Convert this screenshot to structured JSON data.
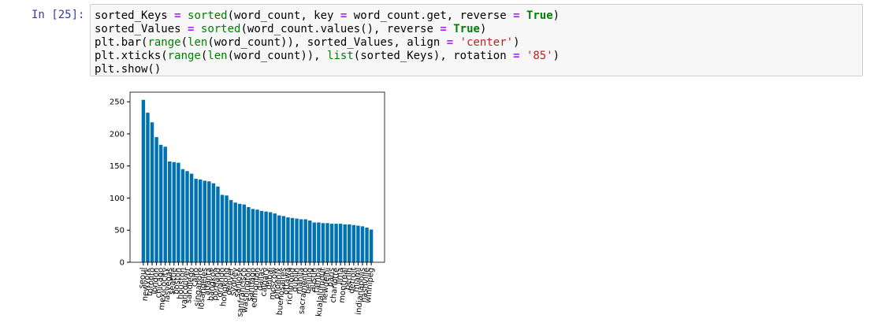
{
  "cell": {
    "prompt": "In [25]:",
    "code": [
      [
        {
          "text": "sorted_Keys ",
          "color": "#000000"
        },
        {
          "text": "=",
          "color": "#aa22ff",
          "bold": true
        },
        {
          "text": " ",
          "color": "#000000"
        },
        {
          "text": "sorted",
          "color": "#008000"
        },
        {
          "text": "(word_count, key ",
          "color": "#000000"
        },
        {
          "text": "=",
          "color": "#aa22ff",
          "bold": true
        },
        {
          "text": " word_count.get, reverse ",
          "color": "#000000"
        },
        {
          "text": "=",
          "color": "#aa22ff",
          "bold": true
        },
        {
          "text": " ",
          "color": "#000000"
        },
        {
          "text": "True",
          "color": "#008000",
          "bold": true
        },
        {
          "text": ")",
          "color": "#000000"
        }
      ],
      [
        {
          "text": "sorted_Values ",
          "color": "#000000"
        },
        {
          "text": "=",
          "color": "#aa22ff",
          "bold": true
        },
        {
          "text": " ",
          "color": "#000000"
        },
        {
          "text": "sorted",
          "color": "#008000"
        },
        {
          "text": "(word_count.values(), reverse ",
          "color": "#000000"
        },
        {
          "text": "=",
          "color": "#aa22ff",
          "bold": true
        },
        {
          "text": " ",
          "color": "#000000"
        },
        {
          "text": "True",
          "color": "#008000",
          "bold": true
        },
        {
          "text": ")",
          "color": "#000000"
        }
      ],
      [
        {
          "text": "plt.bar(",
          "color": "#000000"
        },
        {
          "text": "range",
          "color": "#008000"
        },
        {
          "text": "(",
          "color": "#000000"
        },
        {
          "text": "len",
          "color": "#008000"
        },
        {
          "text": "(word_count)), sorted_Values, align ",
          "color": "#000000"
        },
        {
          "text": "=",
          "color": "#aa22ff",
          "bold": true
        },
        {
          "text": " ",
          "color": "#000000"
        },
        {
          "text": "'center'",
          "color": "#ba2121"
        },
        {
          "text": ")",
          "color": "#000000"
        }
      ],
      [
        {
          "text": "plt.xticks(",
          "color": "#000000"
        },
        {
          "text": "range",
          "color": "#008000"
        },
        {
          "text": "(",
          "color": "#000000"
        },
        {
          "text": "len",
          "color": "#008000"
        },
        {
          "text": "(word_count)), ",
          "color": "#000000"
        },
        {
          "text": "list",
          "color": "#008000"
        },
        {
          "text": "(sorted_Keys), rotation ",
          "color": "#000000"
        },
        {
          "text": "=",
          "color": "#aa22ff",
          "bold": true
        },
        {
          "text": " ",
          "color": "#000000"
        },
        {
          "text": "'85'",
          "color": "#ba2121"
        },
        {
          "text": ")",
          "color": "#000000"
        }
      ],
      [
        {
          "text": "plt.show()",
          "color": "#000000"
        }
      ]
    ]
  },
  "chart_data": {
    "type": "bar",
    "color": "#0072b2",
    "label_rotation": 85,
    "categories": [
      "seoul",
      "newyork",
      "toronto",
      "london",
      "chicago",
      "mexicocity",
      "lasvegas",
      "seattle",
      "boston",
      "houston",
      "vancouver",
      "sandiego",
      "cairo",
      "singapore",
      "losangeles",
      "atlanta",
      "bangkok",
      "portland",
      "orlando",
      "hongkong",
      "denver",
      "sydney",
      "sanjose",
      "sanfrancisco",
      "washington",
      "santiago",
      "edmonton",
      "dallas",
      "calgary",
      "dubai",
      "moscow",
      "phoenix",
      "buenosaires",
      "ottawa",
      "richmond",
      "dublin",
      "manila",
      "sacramento",
      "beijing",
      "austin",
      "tampa",
      "kualalumpur",
      "newdelhi",
      "paris",
      "charlotte",
      "lima",
      "montreal",
      "berlin",
      "detroit",
      "miami",
      "indianapolis",
      "nashville",
      "winnipeg"
    ],
    "values": [
      253,
      233,
      218,
      195,
      183,
      180,
      157,
      156,
      155,
      145,
      142,
      138,
      130,
      129,
      127,
      126,
      123,
      118,
      105,
      104,
      97,
      93,
      91,
      90,
      86,
      83,
      82,
      80,
      79,
      78,
      76,
      73,
      72,
      70,
      69,
      68,
      67,
      67,
      65,
      62,
      62,
      61,
      61,
      60,
      60,
      60,
      59,
      59,
      58,
      57,
      56,
      54,
      51
    ],
    "ylim": [
      0,
      265
    ],
    "yticks": [
      0,
      50,
      100,
      150,
      200,
      250
    ]
  }
}
